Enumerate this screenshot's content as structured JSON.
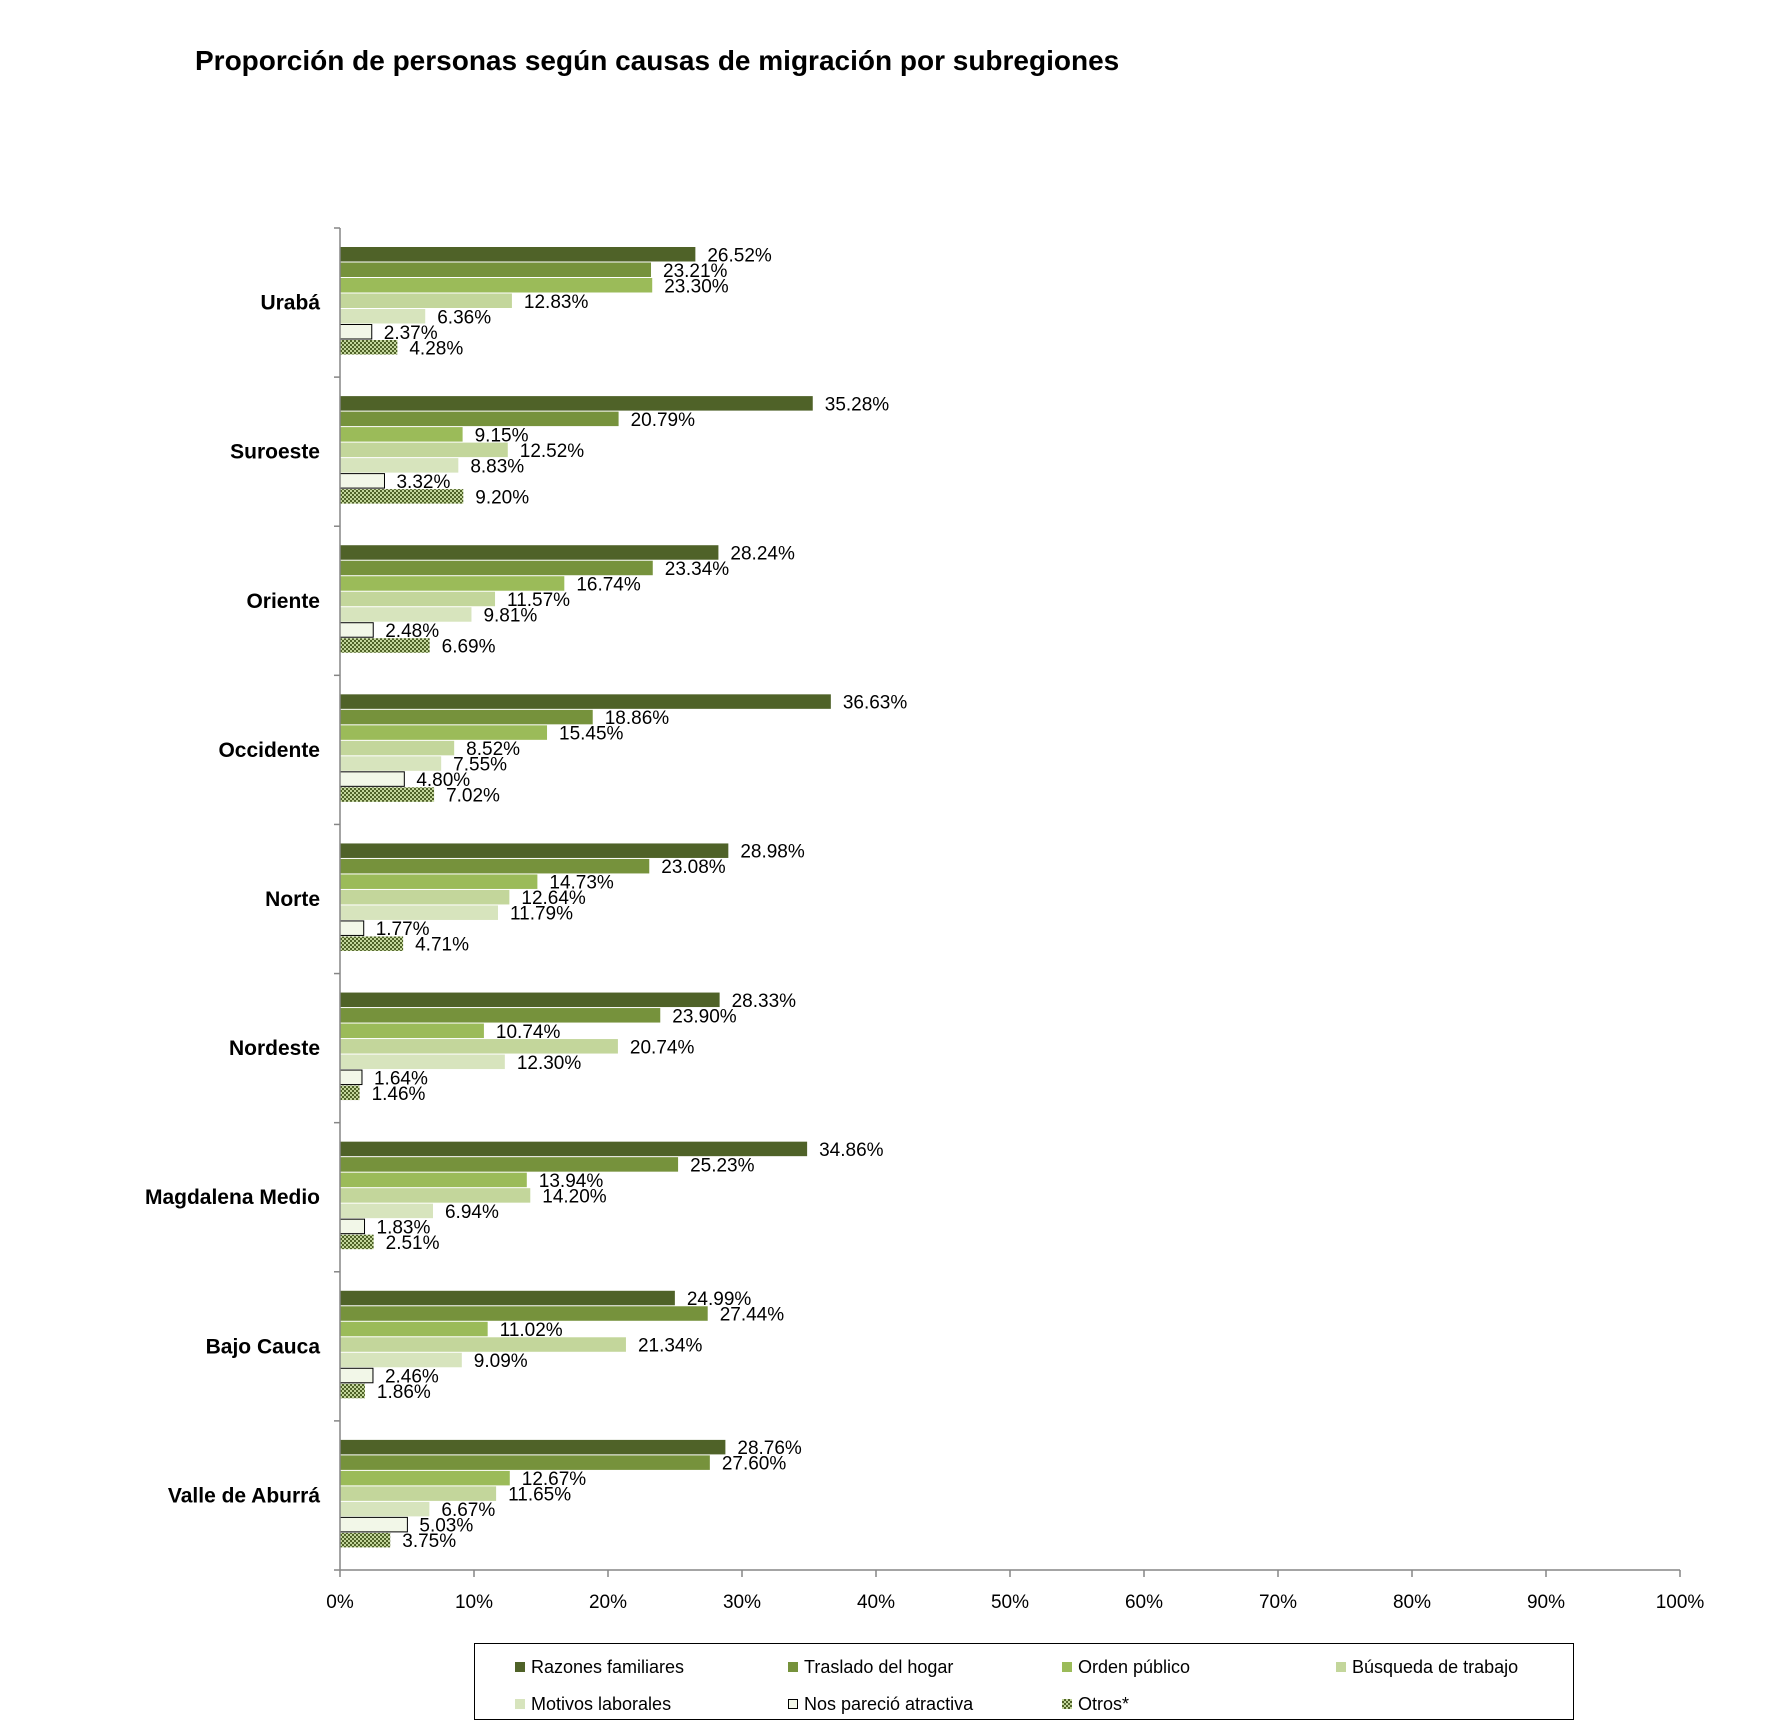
{
  "chart_data": {
    "type": "bar",
    "orientation": "horizontal",
    "title": "Proporción de personas según causas de migración por subregiones",
    "categories": [
      "Urabá",
      "Suroeste",
      "Oriente",
      "Occidente",
      "Norte",
      "Nordeste",
      "Magdalena Medio",
      "Bajo Cauca",
      "Valle de Aburrá"
    ],
    "xlim": [
      0,
      100
    ],
    "x_ticks": [
      "0%",
      "10%",
      "20%",
      "30%",
      "40%",
      "50%",
      "60%",
      "70%",
      "80%",
      "90%",
      "100%"
    ],
    "grid": false,
    "legend_position": "bottom",
    "series": [
      {
        "name": "Razones familiares",
        "color": "#4f6228",
        "pattern": "solid",
        "values": [
          26.52,
          35.28,
          28.24,
          36.63,
          28.98,
          28.33,
          34.86,
          24.99,
          28.76
        ],
        "labels": [
          "26.52%",
          "35.28%",
          "28.24%",
          "36.63%",
          "28.98%",
          "28.33%",
          "34.86%",
          "24.99%",
          "28.76%"
        ]
      },
      {
        "name": "Traslado del hogar",
        "color": "#76923c",
        "pattern": "solid",
        "values": [
          23.21,
          20.79,
          23.34,
          18.86,
          23.08,
          23.9,
          25.23,
          27.44,
          27.6
        ],
        "labels": [
          "23.21%",
          "20.79%",
          "23.34%",
          "18.86%",
          "23.08%",
          "23.90%",
          "25.23%",
          "27.44%",
          "27.60%"
        ]
      },
      {
        "name": "Orden público",
        "color": "#9bbb59",
        "pattern": "solid",
        "values": [
          23.3,
          9.15,
          16.74,
          15.45,
          14.73,
          10.74,
          13.94,
          11.02,
          12.67
        ],
        "labels": [
          "23.30%",
          "9.15%",
          "16.74%",
          "15.45%",
          "14.73%",
          "10.74%",
          "13.94%",
          "11.02%",
          "12.67%"
        ]
      },
      {
        "name": "Búsqueda de trabajo",
        "color": "#c3d69b",
        "pattern": "solid",
        "values": [
          12.83,
          12.52,
          11.57,
          8.52,
          12.64,
          20.74,
          14.2,
          21.34,
          11.65
        ],
        "labels": [
          "12.83%",
          "12.52%",
          "11.57%",
          "8.52%",
          "12.64%",
          "20.74%",
          "14.20%",
          "21.34%",
          "11.65%"
        ]
      },
      {
        "name": "Motivos laborales",
        "color": "#d7e4bd",
        "pattern": "solid",
        "values": [
          6.36,
          8.83,
          9.81,
          7.55,
          11.79,
          12.3,
          6.94,
          9.09,
          6.67
        ],
        "labels": [
          "6.36%",
          "8.83%",
          "9.81%",
          "7.55%",
          "11.79%",
          "12.30%",
          "6.94%",
          "9.09%",
          "6.67%"
        ]
      },
      {
        "name": "Nos pareció atractiva",
        "color": "#f2f7e8",
        "pattern": "outlined",
        "values": [
          2.37,
          3.32,
          2.48,
          4.8,
          1.77,
          1.64,
          1.83,
          2.46,
          5.03
        ],
        "labels": [
          "2.37%",
          "3.32%",
          "2.48%",
          "4.80%",
          "1.77%",
          "1.64%",
          "1.83%",
          "2.46%",
          "5.03%"
        ]
      },
      {
        "name": "Otros*",
        "color": "#4f6228",
        "pattern": "checkered",
        "values": [
          4.28,
          9.2,
          6.69,
          7.02,
          4.71,
          1.46,
          2.51,
          1.86,
          3.75
        ],
        "labels": [
          "4.28%",
          "9.20%",
          "6.69%",
          "7.02%",
          "4.71%",
          "1.46%",
          "2.51%",
          "1.86%",
          "3.75%"
        ]
      }
    ]
  }
}
